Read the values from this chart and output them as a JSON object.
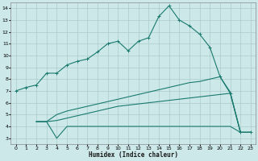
{
  "bg_color": "#cce8e8",
  "grid_color": "#aacccc",
  "line_color": "#1a7a6e",
  "xlabel": "Humidex (Indice chaleur)",
  "xlim": [
    -0.5,
    23.5
  ],
  "ylim": [
    2.5,
    14.5
  ],
  "xticks": [
    0,
    1,
    2,
    3,
    4,
    5,
    6,
    7,
    8,
    9,
    10,
    11,
    12,
    13,
    14,
    15,
    16,
    17,
    18,
    19,
    20,
    21,
    22,
    23
  ],
  "yticks": [
    3,
    4,
    5,
    6,
    7,
    8,
    9,
    10,
    11,
    12,
    13,
    14
  ],
  "line1_x": [
    0,
    1,
    2,
    3,
    4,
    5,
    6,
    7,
    8,
    9,
    10,
    11,
    12,
    13,
    14,
    15,
    16,
    17,
    18,
    19,
    20,
    21,
    22,
    23
  ],
  "line1_y": [
    7.0,
    7.3,
    7.5,
    8.5,
    8.5,
    9.2,
    9.5,
    9.7,
    10.3,
    11.0,
    11.2,
    10.4,
    11.2,
    11.5,
    13.3,
    14.2,
    13.0,
    12.5,
    11.8,
    10.7,
    8.2,
    6.8,
    3.5,
    3.5
  ],
  "line2_x": [
    2,
    3,
    4,
    5,
    6,
    7,
    8,
    9,
    10,
    11,
    12,
    13,
    14,
    15,
    16,
    17,
    18,
    19,
    20,
    21,
    22,
    23
  ],
  "line2_y": [
    4.4,
    4.4,
    3.0,
    4.0,
    4.0,
    4.0,
    4.0,
    4.0,
    4.0,
    4.0,
    4.0,
    4.0,
    4.0,
    4.0,
    4.0,
    4.0,
    4.0,
    4.0,
    4.0,
    4.0,
    3.5,
    3.5
  ],
  "line3_x": [
    2,
    3,
    4,
    5,
    6,
    7,
    8,
    9,
    10,
    11,
    12,
    13,
    14,
    15,
    16,
    17,
    18,
    19,
    20,
    21,
    22,
    23
  ],
  "line3_y": [
    4.4,
    4.4,
    4.5,
    4.7,
    4.9,
    5.1,
    5.3,
    5.5,
    5.7,
    5.8,
    5.9,
    6.0,
    6.1,
    6.2,
    6.3,
    6.4,
    6.5,
    6.6,
    6.7,
    6.8,
    3.5,
    3.5
  ],
  "line4_x": [
    2,
    3,
    4,
    5,
    6,
    7,
    8,
    9,
    10,
    11,
    12,
    13,
    14,
    15,
    16,
    17,
    18,
    19,
    20,
    21,
    22,
    23
  ],
  "line4_y": [
    4.4,
    4.4,
    5.0,
    5.3,
    5.5,
    5.7,
    5.9,
    6.1,
    6.3,
    6.5,
    6.7,
    6.9,
    7.1,
    7.3,
    7.5,
    7.7,
    7.8,
    8.0,
    8.2,
    6.9,
    3.5,
    3.5
  ]
}
